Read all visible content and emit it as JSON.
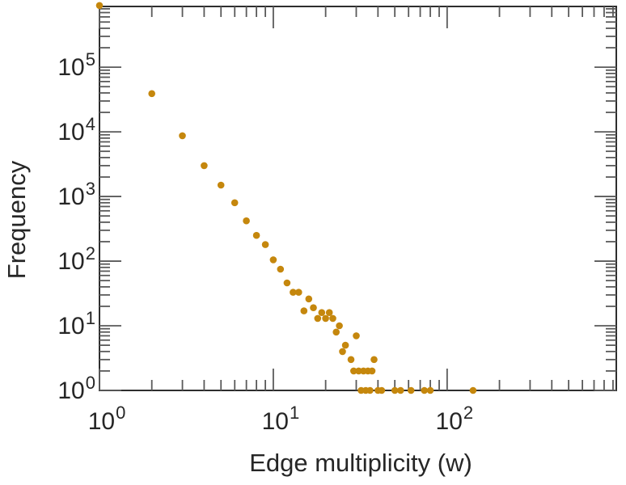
{
  "figure": {
    "background": "#ffffff",
    "frame_color": "#2e2e2e",
    "tick_color": "#5a5a5a",
    "text_color": "#262626"
  },
  "chart_data": {
    "type": "scatter",
    "title": "",
    "xlabel": "Edge multiplicity (w)",
    "ylabel": "Frequency",
    "x_scale": "log",
    "y_scale": "log",
    "x_range": [
      1,
      940
    ],
    "y_range": [
      1,
      870000
    ],
    "grid": false,
    "legend": null,
    "marker": {
      "shape": "dot",
      "color": "#C5870D",
      "radius_px": 4.3
    },
    "x_major_exponents": [
      0,
      1,
      2
    ],
    "y_major_exponents": [
      0,
      1,
      2,
      3,
      4,
      5
    ],
    "x_tick_labels": [
      "10^0",
      "10^1",
      "10^2"
    ],
    "y_tick_labels": [
      "10^0",
      "10^1",
      "10^2",
      "10^3",
      "10^4",
      "10^5"
    ],
    "points": [
      [
        1,
        900000
      ],
      [
        2,
        39000
      ],
      [
        3,
        8700
      ],
      [
        4,
        3000
      ],
      [
        5,
        1500
      ],
      [
        6,
        800
      ],
      [
        7,
        420
      ],
      [
        8,
        250
      ],
      [
        9,
        180
      ],
      [
        10,
        105
      ],
      [
        11,
        75
      ],
      [
        12,
        46
      ],
      [
        13,
        33
      ],
      [
        14,
        33
      ],
      [
        15,
        17
      ],
      [
        16,
        26
      ],
      [
        17,
        19
      ],
      [
        18,
        13
      ],
      [
        19,
        16
      ],
      [
        20,
        13
      ],
      [
        21,
        16
      ],
      [
        22,
        13
      ],
      [
        23,
        8
      ],
      [
        24,
        10
      ],
      [
        25,
        4
      ],
      [
        26,
        5
      ],
      [
        28,
        3
      ],
      [
        29,
        2
      ],
      [
        30,
        7
      ],
      [
        31,
        2
      ],
      [
        32,
        1
      ],
      [
        33,
        2
      ],
      [
        34,
        1
      ],
      [
        35,
        2
      ],
      [
        36,
        1
      ],
      [
        37,
        2
      ],
      [
        38,
        3
      ],
      [
        40,
        1
      ],
      [
        42,
        1
      ],
      [
        50,
        1
      ],
      [
        54,
        1
      ],
      [
        62,
        1
      ],
      [
        74,
        1
      ],
      [
        80,
        1
      ],
      [
        141,
        1
      ]
    ]
  }
}
